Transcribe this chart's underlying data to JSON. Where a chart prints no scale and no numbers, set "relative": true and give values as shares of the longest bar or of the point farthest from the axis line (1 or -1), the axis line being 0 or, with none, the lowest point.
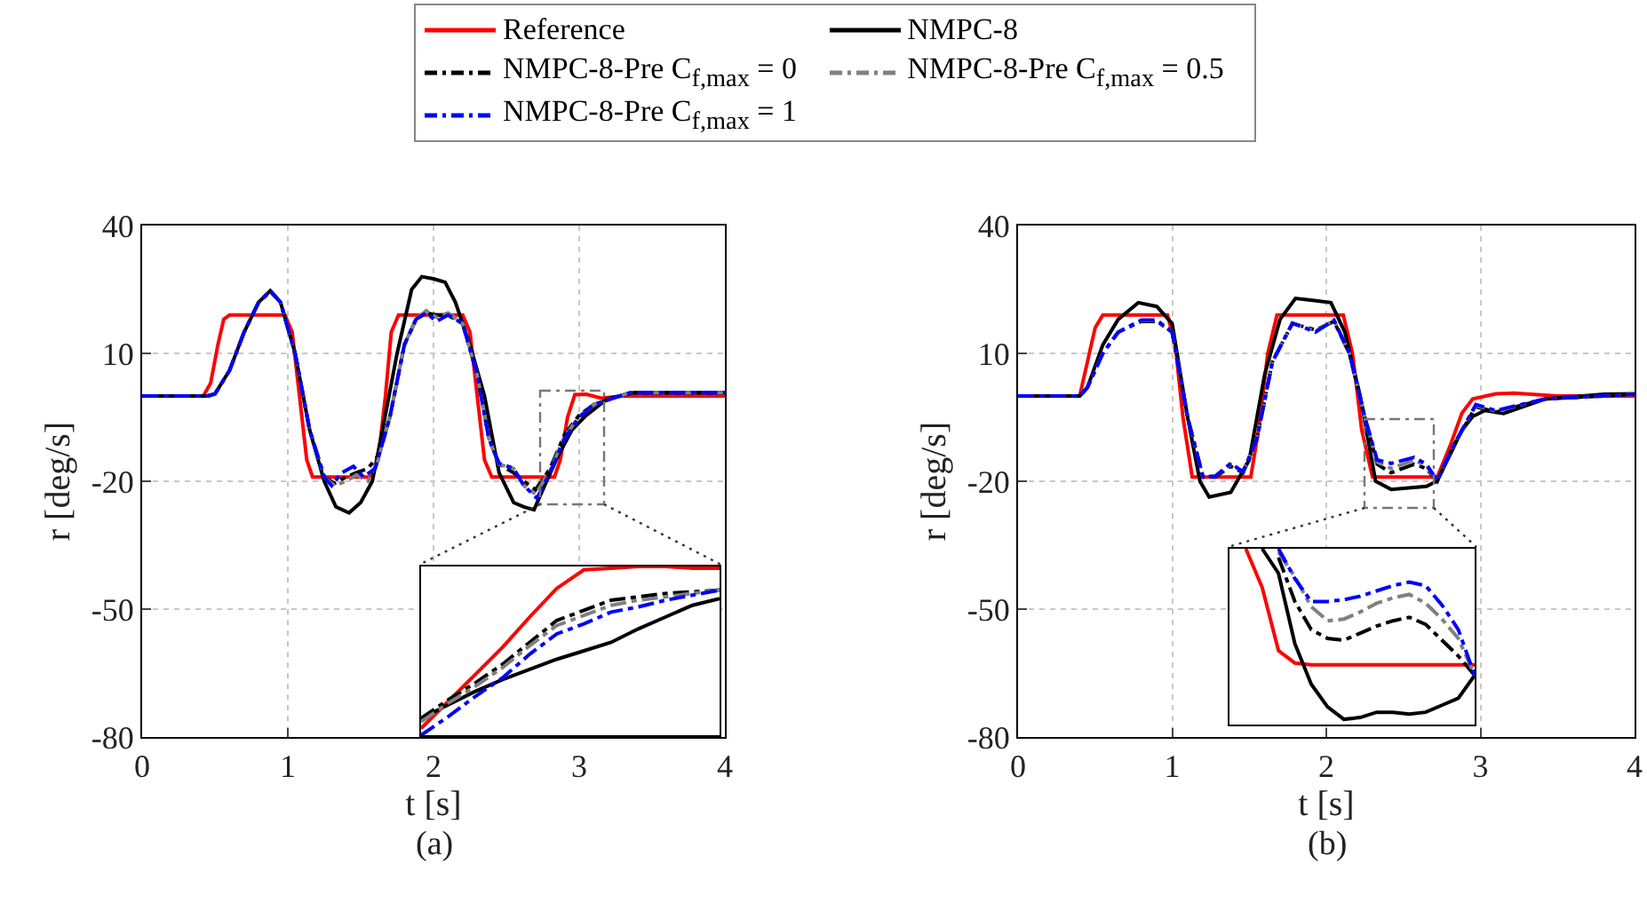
{
  "chart_data": [
    {
      "type": "line",
      "xlabel": "t [s]",
      "ylabel": "r [deg/s]",
      "annotations": [
        "(a)"
      ],
      "xlim": [
        0,
        4
      ],
      "xticks": [
        0,
        1,
        2,
        3,
        4
      ],
      "ylim": [
        -80,
        40
      ],
      "yticks": [
        -80,
        -50,
        -20,
        10,
        40
      ],
      "grid": true,
      "legend": "top",
      "series": [
        {
          "name": "Reference",
          "color": "#ff0000",
          "line_style": "solid",
          "x": [
            0,
            0.42,
            0.47,
            0.52,
            0.56,
            0.6,
            0.98,
            1.03,
            1.08,
            1.13,
            1.17,
            1.57,
            1.62,
            1.67,
            1.71,
            1.76,
            2.2,
            2.25,
            2.3,
            2.35,
            2.4,
            2.83,
            2.87,
            2.92,
            2.97,
            3.05,
            3.15,
            3.3,
            4
          ],
          "values": [
            0,
            0,
            3,
            12,
            18,
            19,
            19,
            15,
            0,
            -15,
            -19,
            -19,
            -15,
            0,
            15,
            19,
            19,
            15,
            0,
            -15,
            -19,
            -19,
            -15,
            -5,
            0.3,
            0.4,
            -0.5,
            0,
            0
          ]
        },
        {
          "name": "NMPC-8",
          "color": "#000000",
          "line_style": "solid",
          "x": [
            0,
            0.45,
            0.5,
            0.6,
            0.7,
            0.8,
            0.88,
            0.95,
            1.05,
            1.15,
            1.25,
            1.33,
            1.42,
            1.5,
            1.58,
            1.65,
            1.75,
            1.85,
            1.92,
            2.0,
            2.08,
            2.15,
            2.25,
            2.35,
            2.45,
            2.55,
            2.62,
            2.69,
            2.75,
            2.85,
            2.95,
            3.04,
            3.19,
            3.38,
            4
          ],
          "values": [
            0,
            0,
            0.5,
            6,
            15,
            22,
            24.7,
            22,
            10,
            -8,
            -20,
            -26,
            -27.4,
            -25,
            -20,
            -8,
            10,
            25,
            28,
            27.5,
            26.7,
            22,
            12,
            0,
            -18,
            -25,
            -26,
            -26.7,
            -22,
            -14.4,
            -8,
            -4.8,
            -0.7,
            0.8,
            0.8
          ]
        },
        {
          "name": "NMPC-8-Pre C$_{f,max}$ = 0",
          "color": "#000000",
          "line_style": "dashed",
          "x": [
            0,
            0.45,
            0.5,
            0.6,
            0.7,
            0.8,
            0.88,
            0.95,
            1.05,
            1.15,
            1.25,
            1.32,
            1.4,
            1.47,
            1.55,
            1.62,
            1.7,
            1.8,
            1.88,
            1.95,
            2.02,
            2.1,
            2.2,
            2.3,
            2.38,
            2.45,
            2.55,
            2.62,
            2.7,
            2.8,
            2.9,
            3.0,
            3.1,
            3.35,
            4
          ],
          "values": [
            0,
            0,
            0.5,
            6,
            15,
            22,
            24.5,
            22,
            10,
            -8,
            -19,
            -20.5,
            -19,
            -18,
            -17,
            -14,
            -5,
            12,
            18,
            19.5,
            19,
            19,
            17,
            5,
            -10,
            -16,
            -18,
            -20,
            -22,
            -17,
            -9,
            -4.5,
            -2,
            0.8,
            0.8
          ]
        },
        {
          "name": "NMPC-8-Pre C$_{f,max}$ = 0.5",
          "color": "#808080",
          "line_style": "dashed",
          "x": [
            0,
            0.45,
            0.5,
            0.6,
            0.7,
            0.8,
            0.88,
            0.95,
            1.05,
            1.15,
            1.25,
            1.32,
            1.4,
            1.47,
            1.55,
            1.62,
            1.7,
            1.8,
            1.88,
            1.95,
            2.02,
            2.1,
            2.2,
            2.3,
            2.38,
            2.45,
            2.55,
            2.62,
            2.7,
            2.8,
            2.9,
            3.0,
            3.1,
            3.35,
            4
          ],
          "values": [
            0,
            0,
            0.5,
            6,
            15,
            22,
            24.6,
            22,
            10,
            -8,
            -19,
            -21,
            -20,
            -18.5,
            -20,
            -15,
            -5,
            12,
            18,
            20,
            18.5,
            19.5,
            17,
            5,
            -10,
            -16,
            -17,
            -21,
            -23,
            -17.5,
            -9.5,
            -4.8,
            -2,
            0.8,
            0.8
          ]
        },
        {
          "name": "NMPC-8-Pre C$_{f,max}$ = 1",
          "color": "#0000ff",
          "line_style": "dashed",
          "x": [
            0,
            0.45,
            0.5,
            0.6,
            0.7,
            0.8,
            0.88,
            0.95,
            1.05,
            1.15,
            1.25,
            1.3,
            1.37,
            1.45,
            1.52,
            1.6,
            1.7,
            1.8,
            1.88,
            1.95,
            2.02,
            2.1,
            2.2,
            2.3,
            2.38,
            2.45,
            2.55,
            2.62,
            2.71,
            2.8,
            2.9,
            3.0,
            3.1,
            3.35,
            4
          ],
          "values": [
            0,
            0,
            0.5,
            6,
            15,
            22,
            24.7,
            22,
            10,
            -8,
            -19,
            -21,
            -18,
            -16.5,
            -19,
            -17,
            -5,
            12,
            18,
            19.5,
            17.5,
            19,
            17,
            5,
            -10,
            -15.8,
            -17,
            -21,
            -24,
            -18,
            -10,
            -5,
            -2,
            0.8,
            0.8
          ]
        }
      ]
    },
    {
      "type": "line",
      "xlabel": "t [s]",
      "ylabel": "r [deg/s]",
      "annotations": [
        "(b)"
      ],
      "xlim": [
        0,
        4
      ],
      "xticks": [
        0,
        1,
        2,
        3,
        4
      ],
      "ylim": [
        -80,
        40
      ],
      "yticks": [
        -80,
        -50,
        -20,
        10,
        40
      ],
      "grid": true,
      "series": [
        {
          "color": "#ff0000",
          "line_style": "solid",
          "x": [
            0,
            0.4,
            0.45,
            0.5,
            0.55,
            0.97,
            1.02,
            1.07,
            1.13,
            1.51,
            1.56,
            1.62,
            1.68,
            2.11,
            2.17,
            2.23,
            2.3,
            2.72,
            2.8,
            2.88,
            2.95,
            3.1,
            3.22,
            3.5,
            4
          ],
          "values": [
            0,
            0,
            8,
            16,
            19,
            19,
            12,
            -5,
            -19,
            -19,
            -8,
            10,
            19,
            19,
            10,
            -8,
            -19,
            -19,
            -12,
            -4,
            -0.7,
            0.5,
            0.7,
            0,
            0
          ]
        },
        {
          "color": "#000000",
          "line_style": "solid",
          "x": [
            0,
            0.4,
            0.45,
            0.55,
            0.65,
            0.78,
            0.9,
            1.0,
            1.1,
            1.18,
            1.24,
            1.38,
            1.5,
            1.6,
            1.7,
            1.8,
            1.9,
            2.03,
            2.12,
            2.22,
            2.32,
            2.42,
            2.65,
            2.72,
            2.8,
            2.88,
            2.95,
            3.03,
            3.15,
            3.42,
            3.8,
            4
          ],
          "values": [
            0,
            0,
            2,
            12,
            18,
            21.9,
            21,
            17,
            -5,
            -20,
            -23.7,
            -22.6,
            -15,
            5,
            18,
            22.9,
            22.5,
            21.9,
            15,
            0,
            -20,
            -21.9,
            -21.2,
            -19.9,
            -14,
            -8,
            -4.8,
            -3.4,
            -4.1,
            -0.7,
            0.4,
            0.5
          ]
        },
        {
          "color": "#000000",
          "line_style": "dashed",
          "x": [
            0,
            0.4,
            0.45,
            0.55,
            0.65,
            0.8,
            0.9,
            1.0,
            1.1,
            1.2,
            1.28,
            1.38,
            1.46,
            1.55,
            1.65,
            1.78,
            1.93,
            2.05,
            2.15,
            2.25,
            2.33,
            2.42,
            2.57,
            2.65,
            2.72,
            2.82,
            2.97,
            3.1,
            3.42,
            4
          ],
          "values": [
            0,
            0,
            2,
            10,
            15,
            17.5,
            17.5,
            15,
            -5,
            -19,
            -19,
            -16.5,
            -18,
            -10,
            8,
            17,
            15.5,
            17.5,
            10,
            -5,
            -16,
            -18,
            -16,
            -17,
            -20,
            -12,
            -2.5,
            -3.8,
            -0.7,
            0.4
          ]
        },
        {
          "color": "#808080",
          "line_style": "dashed",
          "x": [
            0,
            0.4,
            0.45,
            0.55,
            0.65,
            0.8,
            0.9,
            1.0,
            1.1,
            1.2,
            1.28,
            1.38,
            1.46,
            1.55,
            1.65,
            1.78,
            1.93,
            2.05,
            2.15,
            2.25,
            2.33,
            2.42,
            2.57,
            2.65,
            2.72,
            2.82,
            2.97,
            3.1,
            3.42,
            4
          ],
          "values": [
            0,
            0,
            2,
            10,
            15,
            17.7,
            17.7,
            15,
            -5,
            -19,
            -18.8,
            -16,
            -17.8,
            -10,
            8,
            17.1,
            15.2,
            17.8,
            10,
            -5,
            -15.5,
            -17,
            -15,
            -16.5,
            -20,
            -12,
            -2.2,
            -3.6,
            -0.7,
            0.4
          ]
        },
        {
          "color": "#0000ff",
          "line_style": "dashed",
          "x": [
            0,
            0.4,
            0.45,
            0.55,
            0.65,
            0.8,
            0.9,
            1.0,
            1.1,
            1.2,
            1.28,
            1.38,
            1.46,
            1.55,
            1.65,
            1.78,
            1.93,
            2.05,
            2.15,
            2.25,
            2.33,
            2.42,
            2.57,
            2.65,
            2.72,
            2.82,
            2.97,
            3.1,
            3.42,
            4
          ],
          "values": [
            0,
            0,
            2,
            10,
            15,
            17.8,
            17.8,
            15,
            -5,
            -19,
            -18.8,
            -15.8,
            -17.8,
            -10,
            8,
            17.1,
            15,
            17.8,
            10,
            -5,
            -15,
            -15.8,
            -14.4,
            -16,
            -19.9,
            -12,
            -2,
            -3.4,
            -0.7,
            0.4
          ]
        }
      ]
    },
    {
      "type": "line",
      "relative": true,
      "categories": [
        null,
        null,
        null,
        null,
        null,
        null,
        null,
        null,
        null,
        null,
        null,
        null
      ],
      "series": [
        {
          "color": "#ff0000",
          "line_style": "solid",
          "values": [
            0.04,
            0.2,
            0.36,
            0.52,
            0.7,
            0.87,
            0.98,
            0.99,
            1,
            1,
            0.99,
            0.99
          ]
        },
        {
          "color": "#000000",
          "line_style": "solid",
          "values": [
            0.1,
            0.18,
            0.26,
            0.33,
            0.39,
            0.45,
            0.5,
            0.55,
            0.63,
            0.7,
            0.77,
            0.81
          ]
        },
        {
          "color": "#000000",
          "line_style": "dashed",
          "values": [
            0.1,
            0.21,
            0.31,
            0.42,
            0.55,
            0.68,
            0.74,
            0.8,
            0.82,
            0.84,
            0.85,
            0.86
          ]
        },
        {
          "color": "#808080",
          "line_style": "dashed",
          "values": [
            0.08,
            0.19,
            0.29,
            0.4,
            0.53,
            0.65,
            0.71,
            0.77,
            0.8,
            0.82,
            0.84,
            0.86
          ]
        },
        {
          "color": "#0000ff",
          "line_style": "dashed",
          "values": [
            0,
            0.11,
            0.23,
            0.34,
            0.48,
            0.6,
            0.66,
            0.73,
            0.76,
            0.8,
            0.83,
            0.86
          ]
        }
      ]
    },
    {
      "type": "line",
      "relative": true,
      "categories": [
        null,
        null,
        null,
        null,
        null,
        null,
        null,
        null,
        null,
        null,
        null,
        null,
        null,
        null,
        null,
        null
      ],
      "series": [
        {
          "color": "#ff0000",
          "line_style": "solid",
          "values": [
            null,
            1,
            0.78,
            0.42,
            0.35,
            0.34,
            0.34,
            0.34,
            0.34,
            0.34,
            0.34,
            0.34,
            0.34,
            0.34,
            0.34,
            0.34
          ]
        },
        {
          "color": "#000000",
          "line_style": "solid",
          "values": [
            null,
            null,
            1,
            0.86,
            0.46,
            0.23,
            0.1,
            0.03,
            0.04,
            0.07,
            0.07,
            0.06,
            0.07,
            0.11,
            0.15,
            0.28
          ]
        },
        {
          "color": "#000000",
          "line_style": "dashed",
          "values": [
            null,
            null,
            null,
            0.95,
            0.7,
            0.54,
            0.49,
            0.48,
            0.52,
            0.56,
            0.59,
            0.61,
            0.57,
            0.48,
            0.39,
            0.28
          ]
        },
        {
          "color": "#808080",
          "line_style": "dashed",
          "values": [
            null,
            null,
            null,
            0.98,
            0.84,
            0.67,
            0.59,
            0.6,
            0.64,
            0.69,
            0.72,
            0.74,
            0.69,
            0.6,
            0.49,
            0.28
          ]
        },
        {
          "color": "#0000ff",
          "line_style": "dashed",
          "values": [
            null,
            null,
            null,
            1,
            0.83,
            0.7,
            0.7,
            0.71,
            0.73,
            0.76,
            0.79,
            0.81,
            0.79,
            0.68,
            0.54,
            0.28
          ]
        }
      ]
    }
  ]
}
